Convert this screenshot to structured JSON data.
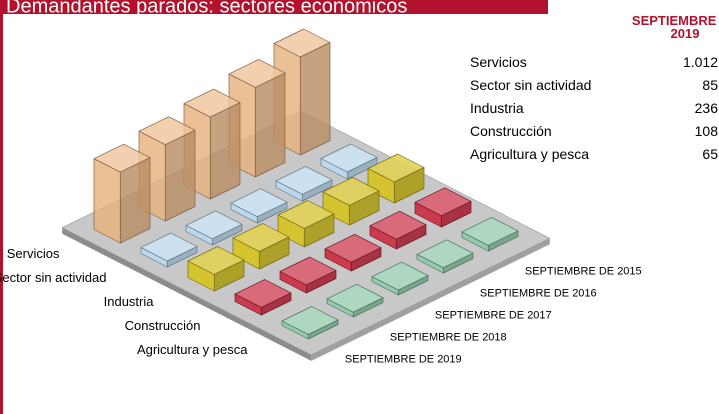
{
  "chart_data": {
    "type": "bar3d",
    "title": "Demandantes parados: sectores económicos",
    "table_header": "SEPTIEMBRE DE 2019",
    "categories": [
      "SEPTIEMBRE DE 2015",
      "SEPTIEMBRE DE 2016",
      "SEPTIEMBRE DE 2017",
      "SEPTIEMBRE DE 2018",
      "SEPTIEMBRE DE 2019"
    ],
    "zlim": [
      0,
      1500
    ],
    "series": [
      {
        "name": "Servicios",
        "color": "#e8b27e",
        "values": [
          1400,
          1280,
          1170,
          1090,
          1012
        ],
        "value_labels": [
          null,
          null,
          null,
          null,
          "1.012"
        ]
      },
      {
        "name": "Sector sin actividad",
        "color": "#b9d9f0",
        "values": [
          100,
          95,
          90,
          88,
          85
        ],
        "value_labels": [
          null,
          null,
          null,
          null,
          "85"
        ]
      },
      {
        "name": "Industria",
        "color": "#d6c31e",
        "values": [
          300,
          280,
          265,
          250,
          236
        ],
        "value_labels": [
          null,
          null,
          null,
          null,
          "236"
        ]
      },
      {
        "name": "Construcción",
        "color": "#cc2a40",
        "values": [
          160,
          140,
          125,
          115,
          108
        ],
        "value_labels": [
          null,
          null,
          null,
          null,
          "108"
        ]
      },
      {
        "name": "Agricultura y pesca",
        "color": "#8ecba9",
        "values": [
          80,
          75,
          70,
          68,
          65
        ],
        "value_labels": [
          null,
          null,
          null,
          null,
          "65"
        ]
      }
    ]
  }
}
